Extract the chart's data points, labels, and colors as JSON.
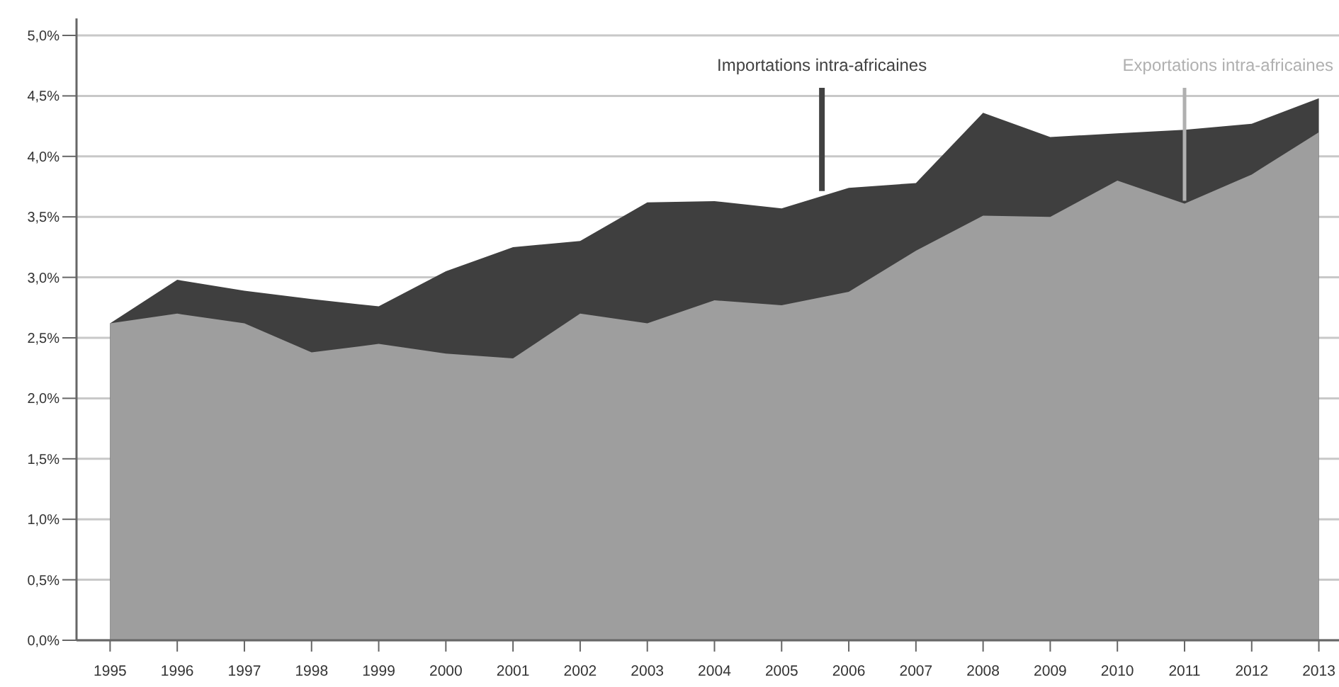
{
  "chart_data": {
    "type": "area",
    "x": [
      1995,
      1996,
      1997,
      1998,
      1999,
      2000,
      2001,
      2002,
      2003,
      2004,
      2005,
      2006,
      2007,
      2008,
      2009,
      2010,
      2011,
      2012,
      2013
    ],
    "series": [
      {
        "color": "#3f3f3f",
        "values": [
          2.62,
          2.98,
          2.89,
          2.82,
          2.76,
          3.05,
          3.25,
          3.3,
          3.62,
          3.63,
          3.57,
          3.74,
          3.78,
          4.36,
          4.16,
          4.19,
          4.22,
          4.27,
          4.48
        ]
      },
      {
        "color": "#9e9e9e",
        "values": [
          2.62,
          2.7,
          2.62,
          2.38,
          2.45,
          2.37,
          2.33,
          2.7,
          2.62,
          2.81,
          2.77,
          2.88,
          3.22,
          3.51,
          3.5,
          3.8,
          3.61,
          3.85,
          4.2
        ]
      }
    ],
    "annotations": [
      {
        "text": "Importations intra-africaines",
        "x": 2005.6,
        "y": 3.69
      },
      {
        "text": "Exportations intra-africaines",
        "x": 2011,
        "y": 3.61
      }
    ],
    "xlim": [
      1994.5,
      2013.3
    ],
    "xticks": [
      1995,
      1996,
      1997,
      1998,
      1999,
      2000,
      2001,
      2002,
      2003,
      2004,
      2005,
      2006,
      2007,
      2008,
      2009,
      2010,
      2011,
      2012,
      2013
    ],
    "ylim": [
      0,
      5
    ],
    "yticks": [
      {
        "value": 0,
        "label": "0,0%"
      },
      {
        "value": 0.5,
        "label": "0,5%"
      },
      {
        "value": 1,
        "label": "1,0%"
      },
      {
        "value": 1.5,
        "label": "1,5%"
      },
      {
        "value": 2,
        "label": "2,0%"
      },
      {
        "value": 2.5,
        "label": "2,5%"
      },
      {
        "value": 3,
        "label": "3,0%"
      },
      {
        "value": 3.5,
        "label": "3,5%"
      },
      {
        "value": 4,
        "label": "4,0%"
      },
      {
        "value": 4.5,
        "label": "4,5%"
      },
      {
        "value": 5,
        "label": "5,0%"
      }
    ],
    "grid": "y"
  }
}
